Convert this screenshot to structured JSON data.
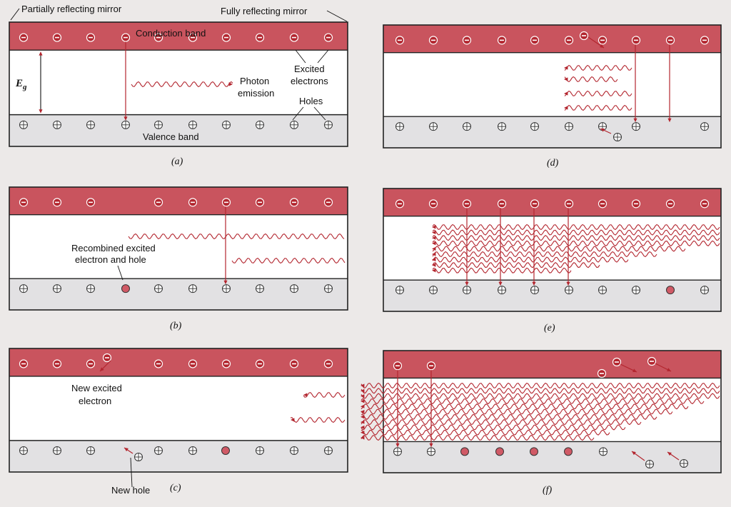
{
  "colors": {
    "background": "#ece9e8",
    "conduction_band": "#c9545e",
    "gap": "#ffffff",
    "valence_band": "#e2e1e3",
    "electron_fill": "#b3262f",
    "hole_fill": "#ffffff",
    "recombined_fill": "#d05a66",
    "photon": "#b3262f",
    "outline": "#222222"
  },
  "labels": {
    "partial_mirror": "Partially reflecting mirror",
    "full_mirror": "Fully reflecting mirror",
    "conduction_band": "Conduction band",
    "valence_band": "Valence band",
    "eg_symbol": "E",
    "eg_sub": "g",
    "photon_emission_1": "Photon",
    "photon_emission_2": "emission",
    "excited_electrons_1": "Excited",
    "excited_electrons_2": "electrons",
    "holes": "Holes",
    "recombined_1": "Recombined excited",
    "recombined_2": "electron and hole",
    "new_excited_1": "New excited",
    "new_excited_2": "electron",
    "new_hole": "New hole"
  },
  "panels": [
    {
      "id": "a",
      "caption": "(a)"
    },
    {
      "id": "b",
      "caption": "(b)"
    },
    {
      "id": "c",
      "caption": "(c)"
    },
    {
      "id": "d",
      "caption": "(d)"
    },
    {
      "id": "e",
      "caption": "(e)"
    },
    {
      "id": "f",
      "caption": "(f)"
    }
  ]
}
